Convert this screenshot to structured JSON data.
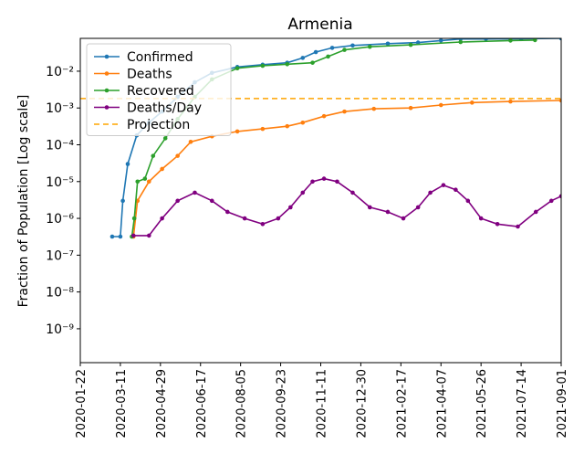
{
  "chart_data": {
    "type": "line",
    "title": "Armenia",
    "y_label": "Fraction of Population [Log scale]",
    "log_scale": true,
    "xlim": [
      "2020-01-22",
      "2021-09-01"
    ],
    "xticks": [
      "2020-01-22",
      "2020-03-11",
      "2020-04-29",
      "2020-06-17",
      "2020-08-05",
      "2020-09-23",
      "2020-11-11",
      "2020-12-30",
      "2021-02-17",
      "2021-04-07",
      "2021-05-26",
      "2021-07-14",
      "2021-09-01"
    ],
    "ylim": [
      1.2e-10,
      0.078
    ],
    "yticks": [
      {
        "value": 1e-09,
        "label": "10⁻⁹"
      },
      {
        "value": 1e-08,
        "label": "10⁻⁸"
      },
      {
        "value": 1e-07,
        "label": "10⁻⁷"
      },
      {
        "value": 1e-06,
        "label": "10⁻⁶"
      },
      {
        "value": 1e-05,
        "label": "10⁻⁵"
      },
      {
        "value": 0.0001,
        "label": "10⁻⁴"
      },
      {
        "value": 0.001,
        "label": "10⁻³"
      },
      {
        "value": 0.01,
        "label": "10⁻²"
      }
    ],
    "legend": "upper-left",
    "series": [
      {
        "name": "Confirmed",
        "color": "#1f77b4",
        "x": [
          "2020-03-01",
          "2020-03-11",
          "2020-03-14",
          "2020-03-20",
          "2020-03-31",
          "2020-04-15",
          "2020-05-01",
          "2020-05-20",
          "2020-06-10",
          "2020-07-01",
          "2020-08-01",
          "2020-09-01",
          "2020-10-01",
          "2020-10-20",
          "2020-11-05",
          "2020-11-25",
          "2020-12-20",
          "2021-02-01",
          "2021-03-10",
          "2021-04-07",
          "2021-05-01",
          "2021-06-01",
          "2021-07-14",
          "2021-09-01"
        ],
        "values": [
          3.2e-07,
          3.2e-07,
          3e-06,
          3e-05,
          0.00018,
          0.0004,
          0.0008,
          0.002,
          0.005,
          0.009,
          0.013,
          0.015,
          0.017,
          0.023,
          0.033,
          0.043,
          0.05,
          0.056,
          0.06,
          0.068,
          0.075,
          0.075,
          0.076,
          0.078
        ]
      },
      {
        "name": "Deaths",
        "color": "#ff7f0e",
        "x": [
          "2020-03-27",
          "2020-04-01",
          "2020-04-15",
          "2020-05-01",
          "2020-05-20",
          "2020-06-05",
          "2020-07-01",
          "2020-08-01",
          "2020-09-01",
          "2020-10-01",
          "2020-10-20",
          "2020-11-15",
          "2020-12-10",
          "2021-01-15",
          "2021-03-01",
          "2021-04-07",
          "2021-05-15",
          "2021-07-01",
          "2021-09-01"
        ],
        "values": [
          3.2e-07,
          3e-06,
          1e-05,
          2.2e-05,
          5e-05,
          0.00012,
          0.00017,
          0.00023,
          0.00027,
          0.00032,
          0.0004,
          0.0006,
          0.0008,
          0.00095,
          0.001,
          0.0012,
          0.0014,
          0.0015,
          0.0016
        ]
      },
      {
        "name": "Recovered",
        "color": "#2ca02c",
        "x": [
          "2020-03-25",
          "2020-03-28",
          "2020-04-01",
          "2020-04-10",
          "2020-04-20",
          "2020-05-05",
          "2020-05-20",
          "2020-06-10",
          "2020-07-01",
          "2020-08-01",
          "2020-09-01",
          "2020-10-01",
          "2020-11-01",
          "2020-11-20",
          "2020-12-10",
          "2021-01-10",
          "2021-03-01",
          "2021-05-01",
          "2021-07-01",
          "2021-07-31"
        ],
        "values": [
          3.2e-07,
          1e-06,
          1e-05,
          1.2e-05,
          5e-05,
          0.00015,
          0.0005,
          0.002,
          0.006,
          0.012,
          0.014,
          0.0155,
          0.017,
          0.025,
          0.038,
          0.046,
          0.052,
          0.062,
          0.068,
          0.07
        ]
      },
      {
        "name": "Deaths/Day",
        "color": "#800080",
        "x": [
          "2020-03-27",
          "2020-04-15",
          "2020-05-01",
          "2020-05-20",
          "2020-06-10",
          "2020-07-01",
          "2020-07-20",
          "2020-08-10",
          "2020-09-01",
          "2020-09-20",
          "2020-10-05",
          "2020-10-20",
          "2020-11-01",
          "2020-11-15",
          "2020-12-01",
          "2020-12-20",
          "2021-01-10",
          "2021-02-01",
          "2021-02-20",
          "2021-03-10",
          "2021-03-25",
          "2021-04-10",
          "2021-04-25",
          "2021-05-10",
          "2021-05-26",
          "2021-06-15",
          "2021-07-10",
          "2021-08-01",
          "2021-08-20",
          "2021-09-01"
        ],
        "values": [
          3.4e-07,
          3.4e-07,
          1e-06,
          3e-06,
          5e-06,
          3e-06,
          1.5e-06,
          1e-06,
          7e-07,
          1e-06,
          2e-06,
          5e-06,
          1e-05,
          1.2e-05,
          1e-05,
          5e-06,
          2e-06,
          1.5e-06,
          1e-06,
          2e-06,
          5e-06,
          8e-06,
          6e-06,
          3e-06,
          1e-06,
          7e-07,
          6e-07,
          1.5e-06,
          3e-06,
          4e-06
        ]
      }
    ],
    "projection": {
      "name": "Projection",
      "color": "#ffa500",
      "value": 0.0018
    }
  }
}
